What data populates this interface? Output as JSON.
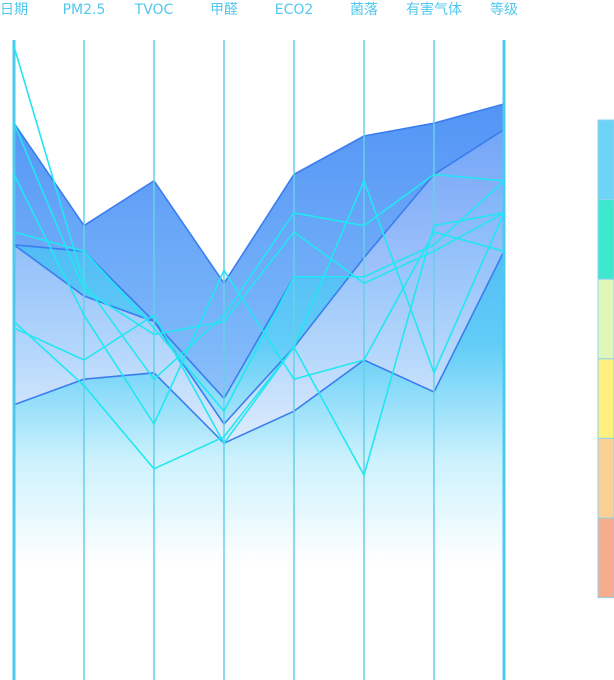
{
  "chart_data": {
    "type": "parallel",
    "axes": [
      "日期",
      "PM2.5",
      "TVOC",
      "甲醛",
      "ECO2",
      "菌落",
      "有害气体",
      "等级"
    ],
    "axis_range": [
      0,
      100
    ],
    "grid": false,
    "legend": "visual-map-right",
    "areas": [
      {
        "upper": [
          87,
          71,
          78,
          62,
          79,
          85,
          87,
          90
        ],
        "lower": [
          68,
          67,
          56,
          44,
          63,
          63,
          68,
          78
        ]
      },
      {
        "upper": [
          68,
          60,
          56,
          40,
          52,
          66,
          79,
          86
        ],
        "lower": [
          43,
          47,
          48,
          37,
          42,
          50,
          45,
          67
        ]
      }
    ],
    "lines": [
      [
        99,
        62,
        47,
        57,
        73,
        71,
        79,
        78
      ],
      [
        87,
        61,
        54,
        56,
        70,
        62,
        67,
        73
      ],
      [
        55,
        50,
        57,
        37,
        52,
        78,
        48,
        73
      ],
      [
        79,
        57,
        40,
        64,
        47,
        50,
        70,
        67
      ],
      [
        56,
        46,
        33,
        38,
        52,
        32,
        71,
        73
      ],
      [
        70,
        67,
        55,
        42,
        63,
        63,
        68,
        78
      ]
    ],
    "visual_map": [
      "#6ed4f5",
      "#3de8cd",
      "#e1f7b9",
      "#fdf07d",
      "#fbd094",
      "#f6ad8d"
    ]
  }
}
